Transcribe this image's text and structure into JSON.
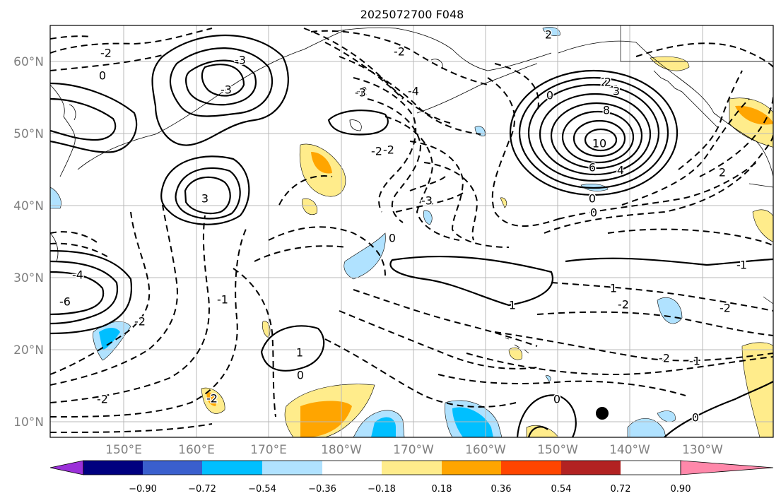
{
  "title": "2025072700 F048",
  "lat_ticks": [
    "60°N",
    "50°N",
    "40°N",
    "30°N",
    "20°N",
    "10°N"
  ],
  "lon_ticks": [
    "150°E",
    "160°E",
    "170°E",
    "180°W",
    "170°W",
    "160°W",
    "150°W",
    "140°W",
    "130°W"
  ],
  "colorbar": {
    "ticks": [
      "−0.90",
      "−0.72",
      "−0.54",
      "−0.36",
      "−0.18",
      "0.18",
      "0.36",
      "0.54",
      "0.72",
      "0.90"
    ],
    "colors": [
      "#9b30d9",
      "#00007f",
      "#3a5fcd",
      "#00bfff",
      "#b0e2ff",
      "#ffffff",
      "#ffec8b",
      "#ffa500",
      "#ff4500",
      "#b22222",
      "#ff88aa"
    ]
  },
  "contour_labels": [
    "0",
    "-2",
    "-3",
    "-2",
    "2",
    "-2",
    "-4",
    "-3",
    "-2",
    "0",
    "2",
    "1",
    "2",
    "2",
    "3",
    "8",
    "10",
    "6",
    "4",
    "0",
    "0",
    "2",
    "-2",
    "-2",
    "3",
    "-3",
    "0",
    "-1",
    "1",
    "-2",
    "-4",
    "-6",
    "-2",
    "-1",
    "1",
    "0",
    "-1",
    "-2",
    "-2",
    "1",
    "0",
    "-2",
    "0",
    "1",
    "-3"
  ],
  "shading_colors": {
    "pos_light": "#ffec8b",
    "pos_mid": "#ffa500",
    "neg_light": "#b0e2ff",
    "neg_mid": "#00bfff"
  }
}
